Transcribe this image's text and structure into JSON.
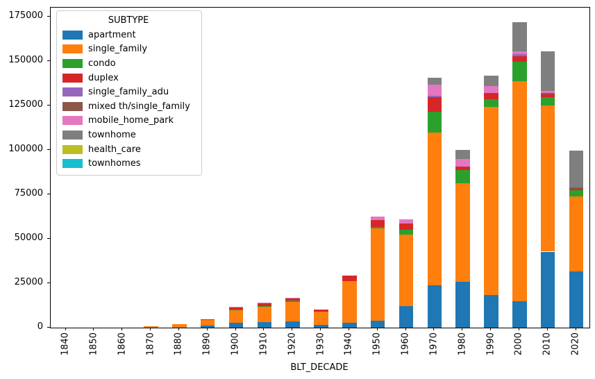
{
  "chart_data": {
    "type": "bar",
    "stacked": true,
    "title": "",
    "xlabel": "BLT_DECADE",
    "ylabel": "",
    "legend_title": "SUBTYPE",
    "legend_position": "upper left",
    "grid": false,
    "ylim": [
      0,
      180200
    ],
    "yticks": [
      0,
      25000,
      50000,
      75000,
      100000,
      125000,
      150000,
      175000
    ],
    "categories": [
      "1840",
      "1850",
      "1860",
      "1870",
      "1880",
      "1890",
      "1900",
      "1910",
      "1920",
      "1930",
      "1940",
      "1950",
      "1960",
      "1970",
      "1980",
      "1990",
      "2000",
      "2010",
      "2020"
    ],
    "series": [
      {
        "name": "apartment",
        "color": "#1f77b4",
        "values": [
          0,
          0,
          0,
          0,
          0,
          1300,
          2700,
          2950,
          3350,
          1700,
          2700,
          4000,
          12200,
          24000,
          25900,
          18350,
          14850,
          42800,
          31750
        ]
      },
      {
        "name": "single_family",
        "color": "#ff7f0e",
        "values": [
          0,
          0,
          0,
          800,
          1900,
          3100,
          7100,
          8800,
          11000,
          7150,
          23550,
          52000,
          40000,
          86000,
          55350,
          105850,
          123950,
          82300,
          42100
        ]
      },
      {
        "name": "condo",
        "color": "#2ca02c",
        "values": [
          0,
          0,
          0,
          0,
          0,
          0,
          300,
          500,
          700,
          0,
          0,
          800,
          2900,
          11600,
          7550,
          4550,
          10950,
          4700,
          3500
        ]
      },
      {
        "name": "duplex",
        "color": "#d62728",
        "values": [
          0,
          0,
          0,
          0,
          0,
          200,
          1200,
          1600,
          1500,
          1150,
          2900,
          3900,
          3500,
          8100,
          1850,
          3250,
          3150,
          1550,
          800
        ]
      },
      {
        "name": "single_family_adu",
        "color": "#9467bd",
        "values": [
          0,
          0,
          0,
          0,
          0,
          0,
          0,
          0,
          0,
          0,
          0,
          0,
          0,
          800,
          0,
          0,
          1050,
          0,
          0
        ]
      },
      {
        "name": "mixed th/single_family",
        "color": "#8c564b",
        "values": [
          0,
          0,
          0,
          0,
          0,
          0,
          0,
          0,
          0,
          0,
          0,
          0,
          0,
          0,
          0,
          0,
          0,
          800,
          800
        ]
      },
      {
        "name": "mobile_home_park",
        "color": "#e377c2",
        "values": [
          0,
          0,
          0,
          0,
          0,
          0,
          500,
          350,
          250,
          0,
          0,
          1800,
          2300,
          6500,
          4300,
          3900,
          1550,
          1150,
          0
        ]
      },
      {
        "name": "townhome",
        "color": "#7f7f7f",
        "values": [
          0,
          0,
          0,
          0,
          0,
          0,
          0,
          0,
          0,
          0,
          0,
          0,
          0,
          3900,
          5200,
          5850,
          16650,
          22150,
          20550
        ]
      },
      {
        "name": "health_care",
        "color": "#bcbd22",
        "values": [
          0,
          0,
          0,
          0,
          0,
          0,
          0,
          0,
          0,
          0,
          0,
          0,
          0,
          0,
          0,
          0,
          0,
          0,
          0
        ]
      },
      {
        "name": "townhomes",
        "color": "#17becf",
        "values": [
          0,
          0,
          0,
          0,
          0,
          0,
          0,
          0,
          0,
          0,
          0,
          0,
          0,
          0,
          0,
          0,
          0,
          0,
          0
        ]
      }
    ]
  }
}
